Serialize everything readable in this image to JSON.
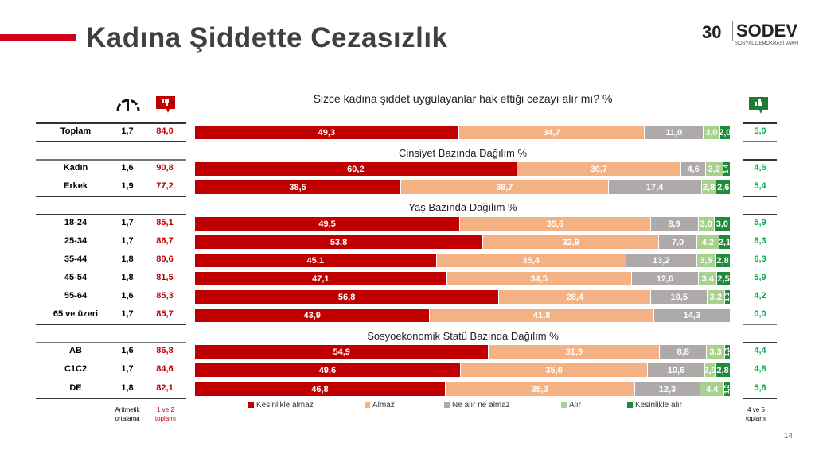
{
  "header": {
    "title": "Kadına Şiddette Cezasızlık",
    "logo_text": "SODEV",
    "logo_number": "30",
    "logo_subtitle": "SOSYAL DEMOKRASİ VAKFI"
  },
  "page_number": "14",
  "colors": {
    "Kesinlikle almaz": "#c00000",
    "Almaz": "#f4b183",
    "Ne alır ne almaz": "#aeaaaa",
    "Alır": "#a9d18e",
    "Kesinlikle alır": "#1e8b3a",
    "accent": "#d0021b"
  },
  "icons": {
    "mean": "gauge-icon",
    "negative": "thumbs-down-icon",
    "positive": "thumbs-up-icon"
  },
  "footer": {
    "mean_label": "Aritmetik ortalama",
    "neg_label": "1 ve 2 toplamı",
    "pos_label": "4 ve 5 toplamı"
  },
  "chart_data": {
    "type": "bar",
    "orientation": "horizontal",
    "stacked": true,
    "title": "Sizce kadına şiddet uygulayanlar hak ettiği cezayı alır mı? %",
    "legend_position": "bottom",
    "series_names": [
      "Kesinlikle almaz",
      "Almaz",
      "Ne alır ne almaz",
      "Alır",
      "Kesinlikle alır"
    ],
    "groups": [
      {
        "title": "",
        "rows": [
          {
            "label": "Toplam",
            "mean": "1,7",
            "neg": "84,0",
            "pos": "5,0",
            "values": [
              49.3,
              34.7,
              11.0,
              3.0,
              2.0
            ]
          }
        ]
      },
      {
        "title": "Cinsiyet Bazında Dağılım %",
        "rows": [
          {
            "label": "Kadın",
            "mean": "1,6",
            "neg": "90,8",
            "pos": "4,6",
            "values": [
              60.2,
              30.7,
              4.6,
              3.2,
              1.4
            ]
          },
          {
            "label": "Erkek",
            "mean": "1,9",
            "neg": "77,2",
            "pos": "5,4",
            "values": [
              38.5,
              38.7,
              17.4,
              2.8,
              2.6
            ]
          }
        ]
      },
      {
        "title": "Yaş Bazında Dağılım %",
        "rows": [
          {
            "label": "18-24",
            "mean": "1,7",
            "neg": "85,1",
            "pos": "5,9",
            "values": [
              49.5,
              35.6,
              8.9,
              3.0,
              3.0
            ]
          },
          {
            "label": "25-34",
            "mean": "1,7",
            "neg": "86,7",
            "pos": "6,3",
            "values": [
              53.8,
              32.9,
              7.0,
              4.2,
              2.1
            ]
          },
          {
            "label": "35-44",
            "mean": "1,8",
            "neg": "80,6",
            "pos": "6,3",
            "values": [
              45.1,
              35.4,
              13.2,
              3.5,
              2.8
            ]
          },
          {
            "label": "45-54",
            "mean": "1,8",
            "neg": "81,5",
            "pos": "5,9",
            "values": [
              47.1,
              34.5,
              12.6,
              3.4,
              2.5
            ]
          },
          {
            "label": "55-64",
            "mean": "1,6",
            "neg": "85,3",
            "pos": "4,2",
            "values": [
              56.8,
              28.4,
              10.5,
              3.2,
              1.1
            ]
          },
          {
            "label": "65 ve üzeri",
            "mean": "1,7",
            "neg": "85,7",
            "pos": "0,0",
            "values": [
              43.9,
              41.8,
              14.3,
              0,
              0
            ]
          }
        ]
      },
      {
        "title": "Sosyoekonomik Statü Bazında Dağılım %",
        "rows": [
          {
            "label": "AB",
            "mean": "1,6",
            "neg": "86,8",
            "pos": "4,4",
            "values": [
              54.9,
              31.9,
              8.8,
              3.3,
              1.1
            ]
          },
          {
            "label": "C1C2",
            "mean": "1,7",
            "neg": "84,6",
            "pos": "4,8",
            "values": [
              49.6,
              35.0,
              10.6,
              2.0,
              2.8
            ]
          },
          {
            "label": "DE",
            "mean": "1,8",
            "neg": "82,1",
            "pos": "5,6",
            "values": [
              46.8,
              35.3,
              12.3,
              4.4,
              1.2
            ]
          }
        ]
      }
    ]
  }
}
